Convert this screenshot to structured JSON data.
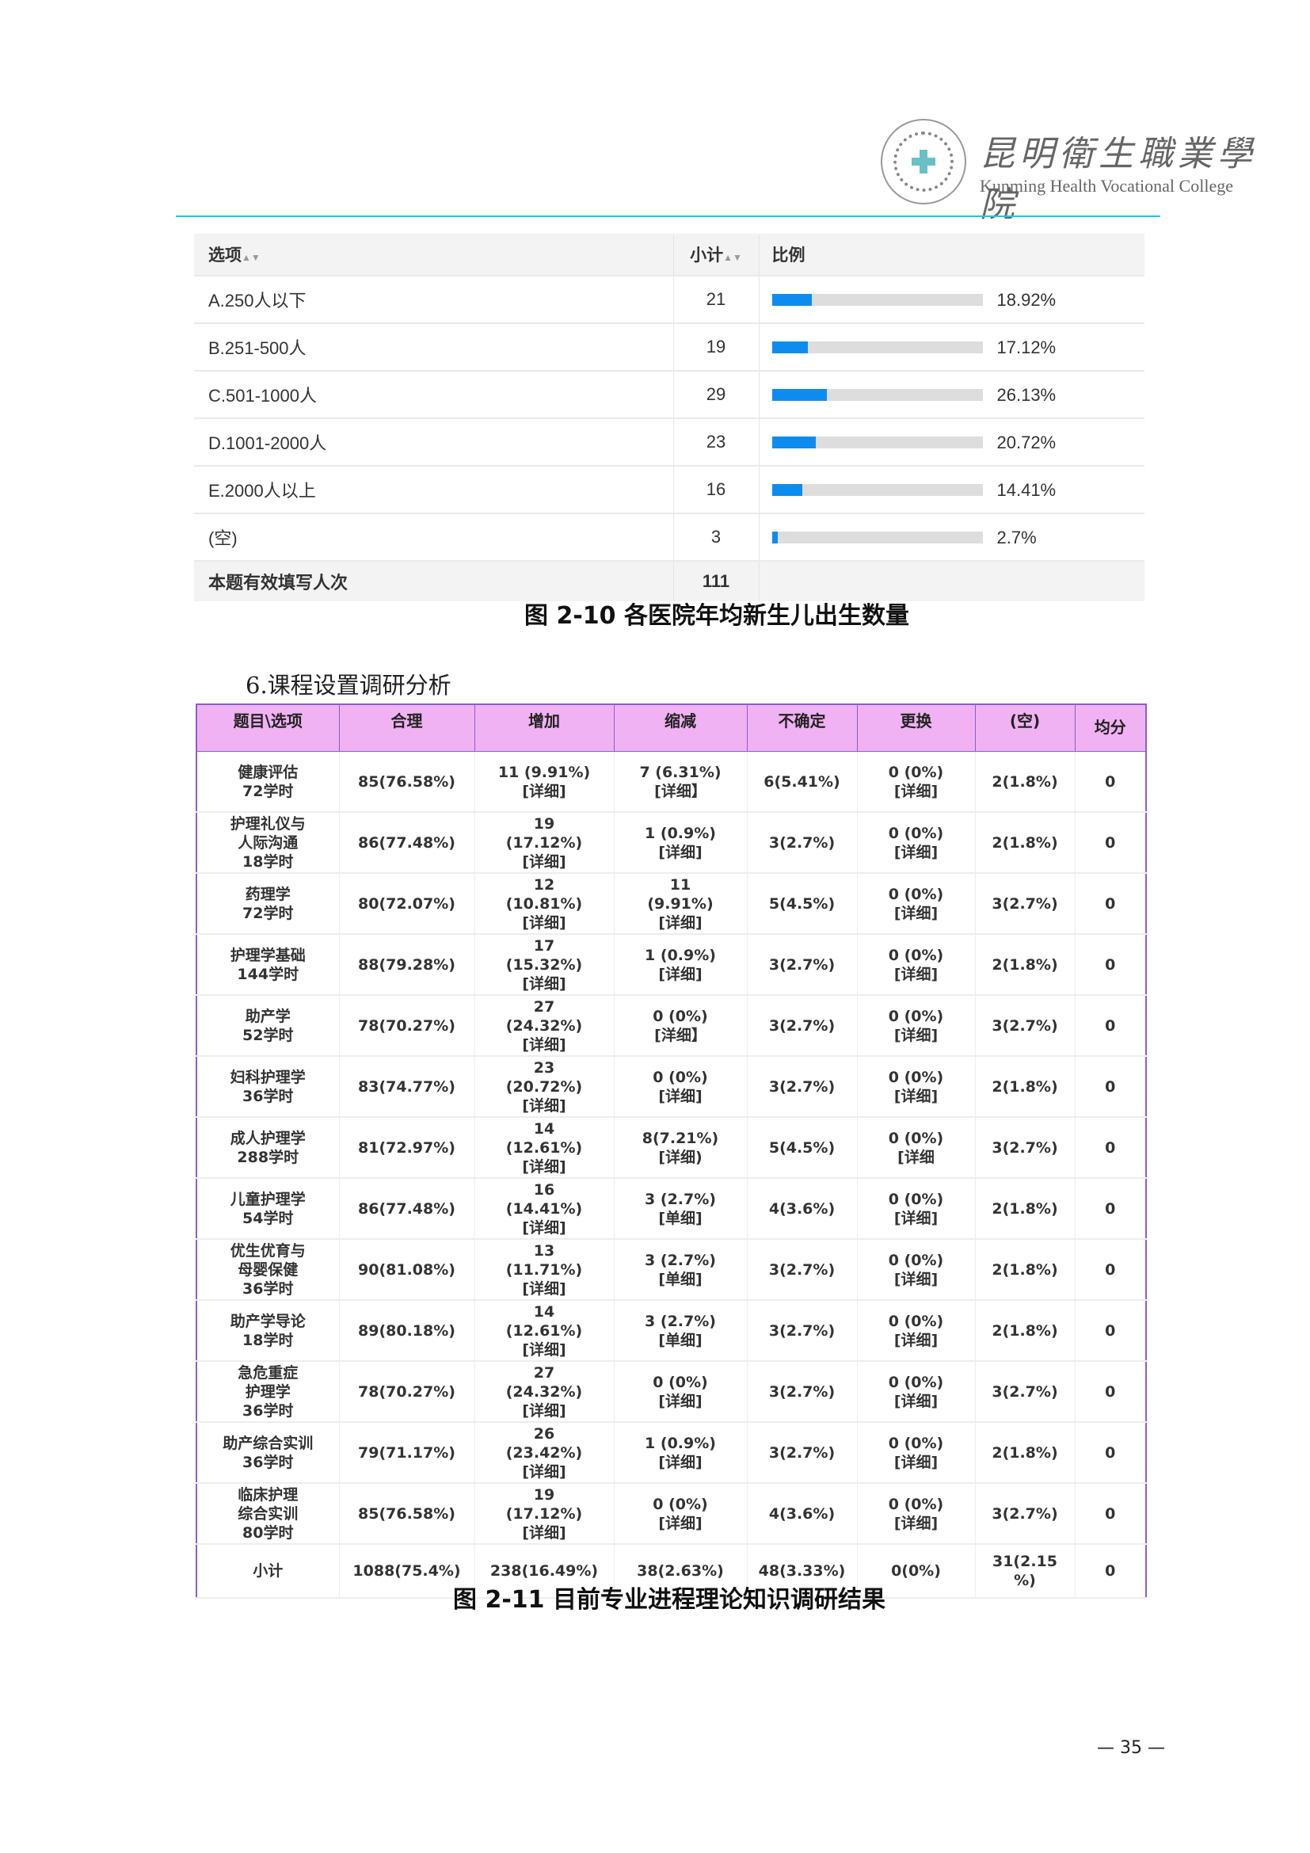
{
  "header": {
    "logo_cn": "昆明衛生職業學院",
    "logo_en": "Kunming Health Vocational College",
    "seal_text": "Kunming Health Vocational College 昆明卫生职业学院",
    "rule_color": "#19c8f0"
  },
  "table1": {
    "headers": [
      "选项",
      "小计",
      "比例"
    ],
    "bar_color": "#0d8cf0",
    "rows": [
      {
        "option": "A.250人以下",
        "count": "21",
        "pct": "18.92%",
        "value": 18.92
      },
      {
        "option": "B.251-500人",
        "count": "19",
        "pct": "17.12%",
        "value": 17.12
      },
      {
        "option": "C.501-1000人",
        "count": "29",
        "pct": "26.13%",
        "value": 26.13
      },
      {
        "option": "D.1001-2000人",
        "count": "23",
        "pct": "20.72%",
        "value": 20.72
      },
      {
        "option": "E.2000人以上",
        "count": "16",
        "pct": "14.41%",
        "value": 14.41
      },
      {
        "option": "(空)",
        "count": "3",
        "pct": "2.7%",
        "value": 2.7
      }
    ],
    "total_label": "本题有效填写人次",
    "total": "111",
    "caption": "图 2-10 各医院年均新生儿出生数量"
  },
  "section_title": "6.课程设置调研分析",
  "table2": {
    "header_color": "#f0b2f2",
    "headers": [
      "题目\\选项",
      "合理",
      "增加",
      "缩减",
      "不确定",
      "更换",
      "(空)",
      "均分"
    ],
    "rows": [
      [
        "健康评估\n72学时",
        "85(76.58%)",
        "11 (9.91%)\n[详细]",
        "7 (6.31%)\n[详细】",
        "6(5.41%)",
        "0 (0%)\n[详细]",
        "2(1.8%)",
        "0"
      ],
      [
        "护理礼仪与\n人际沟通\n18学时",
        "86(77.48%)",
        "19\n(17.12%)\n[详细]",
        "1 (0.9%)\n[详细]",
        "3(2.7%)",
        "0 (0%)\n[详细]",
        "2(1.8%)",
        "0"
      ],
      [
        "药理学\n72学时",
        "80(72.07%)",
        "12\n(10.81%)\n[详细]",
        "11\n(9.91%)\n[详细]",
        "5(4.5%)",
        "0 (0%)\n[详细]",
        "3(2.7%)",
        "0"
      ],
      [
        "护理学基础\n144学时",
        "88(79.28%)",
        "17\n(15.32%)\n[详细]",
        "1 (0.9%)\n[详细]",
        "3(2.7%)",
        "0 (0%)\n[详细]",
        "2(1.8%)",
        "0"
      ],
      [
        "助产学\n52学时",
        "78(70.27%)",
        "27\n(24.32%)\n[详细]",
        "0 (0%)\n[洋细】",
        "3(2.7%)",
        "0 (0%)\n[详细]",
        "3(2.7%)",
        "0"
      ],
      [
        "妇科护理学\n36学时",
        "83(74.77%)",
        "23\n(20.72%)\n[详细]",
        "0 (0%)\n[详细]",
        "3(2.7%)",
        "0 (0%)\n[详细]",
        "2(1.8%)",
        "0"
      ],
      [
        "成人护理学\n288学时",
        "81(72.97%)",
        "14\n(12.61%)\n[详细]",
        "8(7.21%)\n[详细)",
        "5(4.5%)",
        "0 (0%)\n[详细",
        "3(2.7%)",
        "0"
      ],
      [
        "儿童护理学\n54学时",
        "86(77.48%)",
        "16\n(14.41%)\n[详细]",
        "3 (2.7%)\n[单细]",
        "4(3.6%)",
        "0 (0%)\n[详细]",
        "2(1.8%)",
        "0"
      ],
      [
        "优生优育与\n母婴保健\n36学时",
        "90(81.08%)",
        "13\n(11.71%)\n[详细]",
        "3 (2.7%)\n[单细]",
        "3(2.7%)",
        "0 (0%)\n[详细]",
        "2(1.8%)",
        "0"
      ],
      [
        "助产学导论\n18学时",
        "89(80.18%)",
        "14\n(12.61%)\n[详细]",
        "3 (2.7%)\n[单细]",
        "3(2.7%)",
        "0 (0%)\n[详细]",
        "2(1.8%)",
        "0"
      ],
      [
        "急危重症\n护理学\n36学时",
        "78(70.27%)",
        "27\n(24.32%)\n[详细]",
        "0 (0%)\n[详细]",
        "3(2.7%)",
        "0 (0%)\n[详细]",
        "3(2.7%)",
        "0"
      ],
      [
        "助产综合实训\n36学时",
        "79(71.17%)",
        "26\n(23.42%)\n[详细]",
        "1 (0.9%)\n[详细]",
        "3(2.7%)",
        "0 (0%)\n[详细]",
        "2(1.8%)",
        "0"
      ],
      [
        "临床护理\n综合实训\n80学时",
        "85(76.58%)",
        "19\n(17.12%)\n[详细]",
        "0 (0%)\n[详细]",
        "4(3.6%)",
        "0 (0%)\n[详细]",
        "3(2.7%)",
        "0"
      ]
    ],
    "total_row": [
      "小计",
      "1088(75.4%)",
      "238(16.49%)",
      "38(2.63%)",
      "48(3.33%)",
      "0(0%)",
      "31(2.15\n%)",
      "0"
    ],
    "caption": "图 2-11 目前专业进程理论知识调研结果"
  },
  "page_number": "— 35 —"
}
